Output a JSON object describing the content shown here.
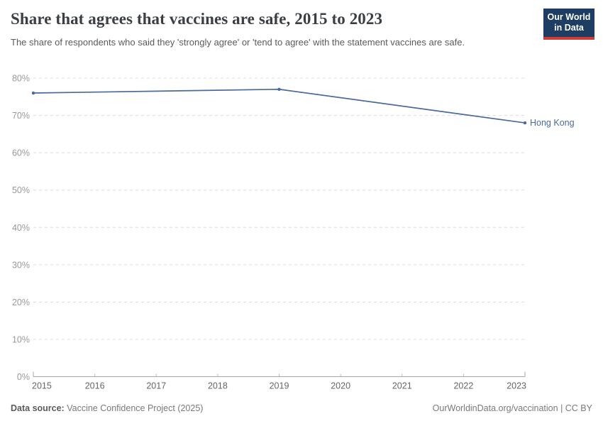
{
  "header": {
    "title": "Share that agrees that vaccines are safe, 2015 to 2023",
    "subtitle": "The share of respondents who said they 'strongly agree' or 'tend to agree' with the statement vaccines are safe.",
    "logo": {
      "line1": "Our World",
      "line2": "in Data",
      "bg_color": "#1d3d63",
      "accent_color": "#cf3e36"
    }
  },
  "chart_data": {
    "type": "line",
    "title": "Share that agrees that vaccines are safe, 2015 to 2023",
    "subtitle": "The share of respondents who said they 'strongly agree' or 'tend to agree' with the statement vaccines are safe.",
    "xlabel": "",
    "ylabel": "",
    "xlim": [
      2015,
      2023
    ],
    "ylim": [
      0,
      80
    ],
    "x_ticks": [
      2015,
      2016,
      2017,
      2018,
      2019,
      2020,
      2021,
      2022,
      2023
    ],
    "y_ticks": [
      0,
      10,
      20,
      30,
      40,
      50,
      60,
      70,
      80
    ],
    "y_tick_suffix": "%",
    "grid": "horizontal-dashed",
    "legend_position": "end-of-line-label",
    "series": [
      {
        "name": "Hong Kong",
        "color": "#4a69a0",
        "x": [
          2015,
          2019,
          2023
        ],
        "values": [
          76,
          77,
          68
        ]
      }
    ]
  },
  "theme": {
    "grid_color": "#dcdcdc",
    "axis_color": "#a5a5a5",
    "inner_tick_color": "#bbbbbb",
    "y_label_color": "#999999",
    "x_label_color": "#666666"
  },
  "footer": {
    "source_label": "Data source:",
    "source_value": "Vaccine Confidence Project (2025)",
    "attribution": "OurWorldinData.org/vaccination | CC BY"
  }
}
